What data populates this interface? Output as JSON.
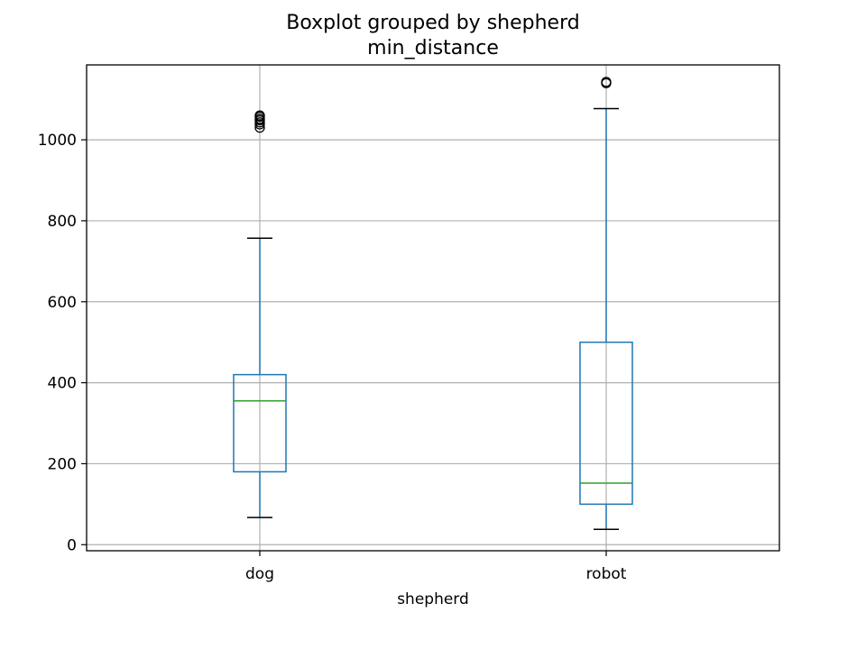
{
  "chart_data": {
    "type": "boxplot",
    "title": "Boxplot grouped by shepherd",
    "subtitle": "min_distance",
    "xlabel": "shepherd",
    "ylabel": "",
    "categories": [
      "dog",
      "robot"
    ],
    "ylim": [
      -15,
      1185
    ],
    "yticks": [
      0,
      200,
      400,
      600,
      800,
      1000
    ],
    "grid": true,
    "boxes": [
      {
        "category": "dog",
        "whislo": 67,
        "q1": 180,
        "med": 355,
        "q3": 420,
        "whishi": 757,
        "fliers": [
          1030,
          1038,
          1043,
          1048,
          1052,
          1057,
          1060
        ]
      },
      {
        "category": "robot",
        "whislo": 38,
        "q1": 100,
        "med": 152,
        "q3": 500,
        "whishi": 1077,
        "fliers": [
          1140,
          1143
        ]
      }
    ],
    "colors": {
      "box": "#1f77b4",
      "median": "#2ca02c",
      "whisker_cap": "#000000",
      "grid": "#b0b0b0",
      "axes": "#000000"
    }
  }
}
